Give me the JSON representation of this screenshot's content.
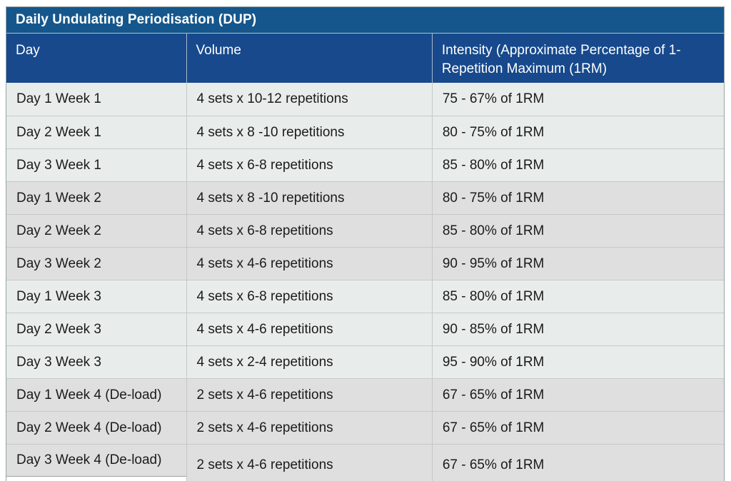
{
  "page": {
    "background": "#FFFFFF"
  },
  "theme": {
    "page_bg": "#FFFFFF",
    "title_bar_bg": "#15578C",
    "header_bg": "#17498C",
    "header_text": "#FFFFFF",
    "header_divider": "#A9B8CE",
    "title_separator": "#B3BFC9",
    "row_light_bg": "#E8EDEB",
    "row_dark_bg": "#DEDFDE",
    "body_text": "#1B1B1B",
    "row_separator": "#C6C9C8",
    "cell_divider": "#C4C8C7",
    "outer_border": "#98A2A6",
    "last_cell_border": "#9BA1A1"
  },
  "table": {
    "title": "Daily Undulating Periodisation (DUP)",
    "columns": [
      "Day",
      "Volume",
      "Intensity (Approximate Percentage of 1-Repetition Maximum (1RM)"
    ],
    "rows": [
      {
        "day": "Day 1 Week 1",
        "volume": "4 sets x 10-12 repetitions",
        "intensity": "75 - 67% of 1RM",
        "shade": "light"
      },
      {
        "day": "Day 2 Week 1",
        "volume": "4 sets x 8 -10 repetitions",
        "intensity": "80 - 75% of 1RM",
        "shade": "light"
      },
      {
        "day": "Day 3 Week 1",
        "volume": "4 sets x 6-8 repetitions",
        "intensity": "85 - 80% of 1RM",
        "shade": "light"
      },
      {
        "day": "Day 1 Week 2",
        "volume": "4 sets x 8 -10 repetitions",
        "intensity": "80 - 75% of 1RM",
        "shade": "dark"
      },
      {
        "day": "Day 2 Week 2",
        "volume": "4 sets x 6-8 repetitions",
        "intensity": "85 - 80% of 1RM",
        "shade": "dark"
      },
      {
        "day": "Day 3 Week 2",
        "volume": "4 sets x 4-6 repetitions",
        "intensity": "90 - 95% of 1RM",
        "shade": "dark"
      },
      {
        "day": "Day 1 Week 3",
        "volume": "4 sets x 6-8 repetitions",
        "intensity": "85 - 80% of 1RM",
        "shade": "light"
      },
      {
        "day": "Day 2 Week 3",
        "volume": "4 sets x 4-6 repetitions",
        "intensity": "90 - 85% of 1RM",
        "shade": "light"
      },
      {
        "day": "Day 3 Week 3",
        "volume": "4 sets x 2-4 repetitions",
        "intensity": "95 - 90% of 1RM",
        "shade": "light"
      },
      {
        "day": "Day 1 Week 4 (De-load)",
        "volume": "2 sets x 4-6 repetitions",
        "intensity": "67 - 65% of 1RM",
        "shade": "dark"
      },
      {
        "day": "Day 2 Week 4 (De-load)",
        "volume": "2 sets x 4-6 repetitions",
        "intensity": "67 - 65% of 1RM",
        "shade": "dark"
      },
      {
        "day": "Day 3 Week 4 (De-load)",
        "volume": "2 sets x 4-6 repetitions",
        "intensity": "67 - 65% of 1RM",
        "shade": "dark"
      }
    ]
  }
}
